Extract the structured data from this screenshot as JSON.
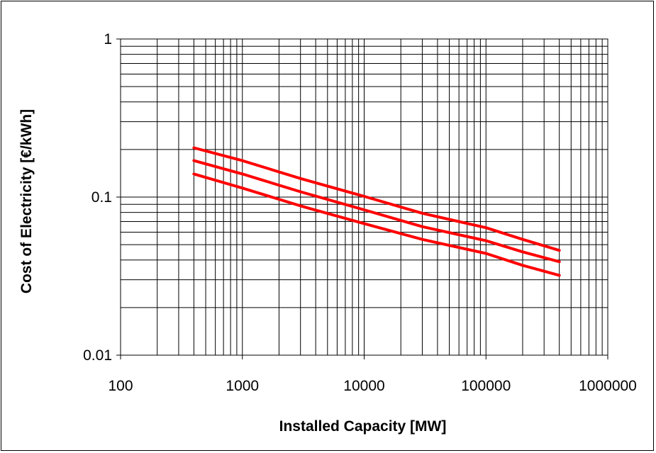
{
  "chart_data": {
    "type": "line",
    "title": "",
    "xlabel": "Installed Capacity [MW]",
    "ylabel": "Cost of Electricity [€/kWh]",
    "x_scale": "log",
    "y_scale": "log",
    "xlim": [
      100,
      1000000
    ],
    "ylim": [
      0.01,
      1
    ],
    "x_tick_labels": [
      "100",
      "1000",
      "10000",
      "100000",
      "1000000"
    ],
    "y_tick_labels": [
      "0.01",
      "0.1",
      "1"
    ],
    "grid": true,
    "legend": "none",
    "line_color": "#ff0000",
    "series": [
      {
        "x": [
          400,
          1000,
          3000,
          10000,
          30000,
          100000,
          200000,
          400000
        ],
        "y": [
          0.205,
          0.17,
          0.131,
          0.101,
          0.079,
          0.064,
          0.054,
          0.046
        ]
      },
      {
        "x": [
          400,
          1000,
          3000,
          10000,
          30000,
          100000,
          200000,
          400000
        ],
        "y": [
          0.17,
          0.14,
          0.108,
          0.083,
          0.065,
          0.053,
          0.045,
          0.039
        ]
      },
      {
        "x": [
          400,
          1000,
          3000,
          10000,
          30000,
          100000,
          200000,
          400000
        ],
        "y": [
          0.14,
          0.114,
          0.088,
          0.068,
          0.054,
          0.044,
          0.037,
          0.032
        ]
      }
    ]
  }
}
